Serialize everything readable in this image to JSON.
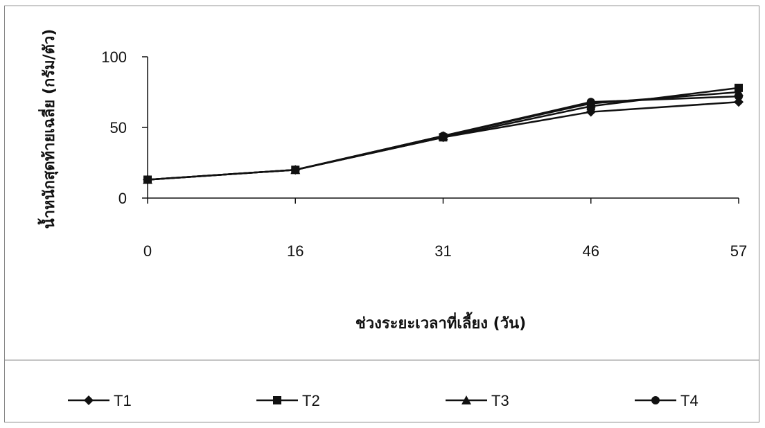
{
  "chart_data": {
    "type": "line",
    "title": "",
    "xlabel": "ช่วงระยะเวลาที่เลี้ยง (วัน)",
    "ylabel": "น้ำหนักสุดท้ายเฉลี่ย (กรัม/ตัว)",
    "categories": [
      "0",
      "16",
      "31",
      "46",
      "57"
    ],
    "ylim": [
      0,
      100
    ],
    "yticks": [
      "0",
      "50",
      "100"
    ],
    "grid": false,
    "legend_position": "bottom",
    "series": [
      {
        "name": "T1",
        "marker": "diamond",
        "values": [
          13,
          20,
          43,
          61,
          68
        ]
      },
      {
        "name": "T2",
        "marker": "square",
        "values": [
          13,
          20,
          43,
          65,
          78
        ]
      },
      {
        "name": "T3",
        "marker": "triangle",
        "values": [
          13,
          20,
          44,
          67,
          75
        ]
      },
      {
        "name": "T4",
        "marker": "circle",
        "values": [
          13,
          20,
          44,
          68,
          72
        ]
      }
    ],
    "line_color": "#111111"
  }
}
